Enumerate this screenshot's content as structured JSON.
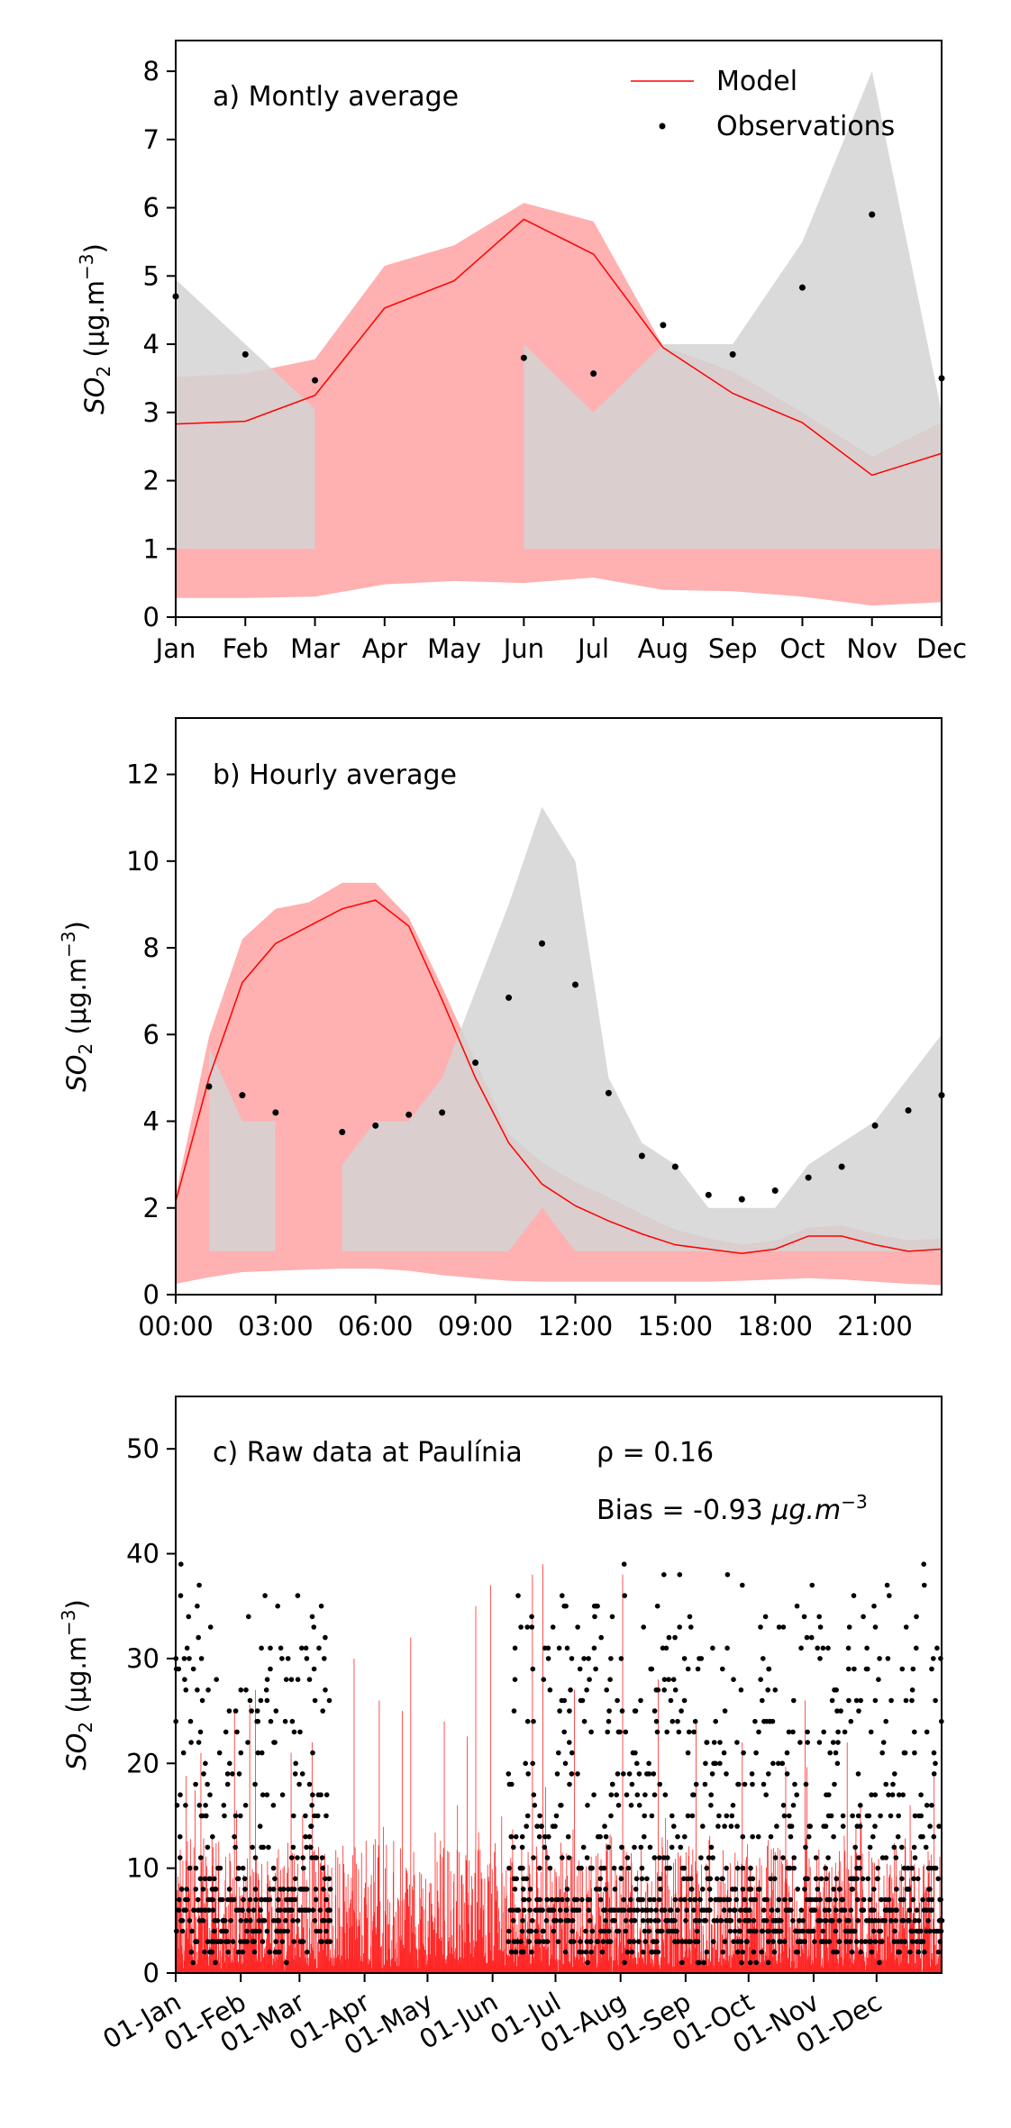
{
  "colors": {
    "model": "#ff0000",
    "model_band": "#ffb0b0",
    "obs": "#000000",
    "obs_band": "#d3d3d3"
  },
  "legend": {
    "model": "Model",
    "observations": "Observations",
    "placement": "top-right"
  },
  "chart_data": [
    {
      "type": "line",
      "annotation": "a) Montly average",
      "ylabel_base": "SO",
      "ylabel_sub": "2",
      "ylabel_unit": " (μg.m",
      "ylabel_exp": "−3",
      "ylabel_close": ")",
      "categories": [
        "Jan",
        "Feb",
        "Mar",
        "Apr",
        "May",
        "Jun",
        "Jul",
        "Aug",
        "Sep",
        "Oct",
        "Nov",
        "Dec"
      ],
      "ylim": [
        0,
        8.45
      ],
      "yticks": [
        0,
        1,
        2,
        3,
        4,
        5,
        6,
        7,
        8
      ],
      "grid": false,
      "series": [
        {
          "name": "Model",
          "values": [
            2.83,
            2.87,
            3.25,
            4.53,
            4.93,
            5.83,
            5.32,
            3.95,
            3.28,
            2.85,
            2.08,
            2.4
          ]
        },
        {
          "name": "Observations",
          "values": [
            4.7,
            3.85,
            3.47,
            null,
            null,
            3.8,
            3.57,
            4.28,
            3.85,
            4.83,
            5.9,
            3.5
          ]
        }
      ],
      "model_band": {
        "lower": [
          0.28,
          0.28,
          0.3,
          0.48,
          0.53,
          0.5,
          0.58,
          0.4,
          0.38,
          0.3,
          0.17,
          0.22
        ],
        "upper": [
          3.52,
          3.57,
          3.78,
          5.15,
          5.45,
          6.07,
          5.8,
          3.97,
          3.6,
          3.0,
          2.35,
          2.85
        ]
      },
      "obs_band": [
        {
          "x": [
            0,
            1,
            2
          ],
          "lower": [
            1,
            1,
            1
          ],
          "upper": [
            4.95,
            4.0,
            3.05
          ]
        },
        {
          "x": [
            5,
            6,
            7,
            8,
            9,
            10,
            11
          ],
          "lower": [
            1,
            1,
            1,
            1,
            1,
            1,
            1
          ],
          "upper": [
            4.0,
            3.0,
            4.0,
            4.0,
            5.5,
            8.0,
            3.0
          ]
        }
      ]
    },
    {
      "type": "line",
      "annotation": "b) Hourly average",
      "ylabel_base": "SO",
      "ylabel_sub": "2",
      "ylabel_unit": " (μg.m",
      "ylabel_exp": "−3",
      "ylabel_close": ")",
      "xticks": [
        "00:00",
        "03:00",
        "06:00",
        "09:00",
        "12:00",
        "15:00",
        "18:00",
        "21:00"
      ],
      "xtick_hours": [
        0,
        3,
        6,
        9,
        12,
        15,
        18,
        21
      ],
      "xlim": [
        0,
        23
      ],
      "ylim": [
        0,
        13.3
      ],
      "yticks": [
        0,
        2,
        4,
        6,
        8,
        10,
        12
      ],
      "grid": false,
      "series": [
        {
          "name": "Model",
          "hours": [
            0,
            1,
            2,
            3,
            4,
            5,
            6,
            7,
            8,
            9,
            10,
            11,
            12,
            13,
            14,
            15,
            16,
            17,
            18,
            19,
            20,
            21,
            22,
            23
          ],
          "values": [
            2.15,
            5.0,
            7.2,
            8.1,
            8.5,
            8.9,
            9.1,
            8.5,
            6.8,
            5.0,
            3.5,
            2.55,
            2.05,
            1.7,
            1.4,
            1.15,
            1.05,
            0.95,
            1.05,
            1.35,
            1.35,
            1.15,
            1.0,
            1.05
          ]
        },
        {
          "name": "Observations",
          "hours": [
            1,
            2,
            3,
            5,
            6,
            7,
            8,
            9,
            10,
            11,
            12,
            13,
            14,
            15,
            16,
            17,
            18,
            19,
            20,
            21,
            22,
            23
          ],
          "values": [
            4.8,
            4.6,
            4.2,
            3.75,
            3.9,
            4.15,
            4.2,
            5.35,
            6.85,
            8.1,
            7.15,
            4.65,
            3.2,
            2.95,
            2.3,
            2.2,
            2.4,
            2.7,
            2.95,
            3.9,
            4.25,
            4.6
          ]
        }
      ],
      "model_band": {
        "hours": [
          0,
          1,
          2,
          3,
          4,
          5,
          6,
          7,
          8,
          9,
          10,
          11,
          12,
          13,
          14,
          15,
          16,
          17,
          18,
          19,
          20,
          21,
          22,
          23
        ],
        "lower": [
          0.25,
          0.4,
          0.52,
          0.55,
          0.58,
          0.6,
          0.6,
          0.55,
          0.45,
          0.38,
          0.32,
          0.3,
          0.3,
          0.3,
          0.3,
          0.3,
          0.3,
          0.32,
          0.35,
          0.38,
          0.35,
          0.3,
          0.25,
          0.22
        ],
        "upper": [
          2.3,
          5.95,
          8.2,
          8.9,
          9.05,
          9.5,
          9.5,
          8.7,
          7.1,
          5.4,
          3.7,
          3.05,
          2.6,
          2.25,
          1.85,
          1.5,
          1.3,
          1.15,
          1.25,
          1.55,
          1.6,
          1.4,
          1.25,
          1.3
        ]
      },
      "obs_band": [
        {
          "hours": [
            1,
            2,
            3
          ],
          "lower": [
            1,
            1,
            1
          ],
          "upper": [
            5.7,
            4.0,
            4.0
          ]
        },
        {
          "hours": [
            5,
            6,
            7,
            8,
            9,
            10,
            11,
            12,
            13,
            14,
            15,
            16,
            17,
            18,
            19,
            20,
            21,
            22,
            23
          ],
          "lower": [
            1,
            1,
            1,
            1,
            1,
            1,
            2,
            1,
            1,
            1,
            1,
            1,
            1,
            1,
            1,
            1,
            1,
            1,
            1
          ],
          "upper": [
            3.0,
            4.0,
            4.0,
            5.0,
            7.0,
            9.0,
            11.25,
            10.0,
            5.0,
            3.5,
            3.0,
            2.0,
            2.0,
            2.0,
            3.0,
            3.5,
            4.0,
            5.0,
            6.0
          ]
        }
      ]
    },
    {
      "type": "scatter",
      "annotation": "c) Raw data at Paulínia",
      "rho": "ρ = 0.16",
      "bias_text": "Bias = -0.93 ",
      "bias_unit": "μg.m",
      "bias_exp": "−3",
      "ylabel_base": "SO",
      "ylabel_sub": "2",
      "ylabel_unit": " (μg.m",
      "ylabel_exp": "−3",
      "ylabel_close": ")",
      "xticks": [
        "01-Jan",
        "01-Feb",
        "01-Mar",
        "01-Apr",
        "01-May",
        "01-Jun",
        "01-Jul",
        "01-Aug",
        "01-Sep",
        "01-Oct",
        "01-Nov",
        "01-Dec"
      ],
      "xtick_days": [
        0,
        31,
        59,
        90,
        120,
        151,
        181,
        212,
        243,
        273,
        304,
        334
      ],
      "xlim": [
        0,
        365
      ],
      "ylim": [
        0,
        55
      ],
      "yticks": [
        0,
        10,
        20,
        30,
        40,
        50
      ],
      "obs_gap_days": [
        73,
        158
      ],
      "obs_max": 39,
      "model_spikes": [
        {
          "day": 12,
          "value": 21
        },
        {
          "day": 28,
          "value": 25
        },
        {
          "day": 38,
          "value": 27
        },
        {
          "day": 55,
          "value": 21
        },
        {
          "day": 65,
          "value": 22
        },
        {
          "day": 85,
          "value": 30
        },
        {
          "day": 97,
          "value": 26
        },
        {
          "day": 108,
          "value": 25
        },
        {
          "day": 112,
          "value": 32
        },
        {
          "day": 128,
          "value": 24
        },
        {
          "day": 143,
          "value": 35
        },
        {
          "day": 150,
          "value": 37
        },
        {
          "day": 170,
          "value": 38
        },
        {
          "day": 175,
          "value": 39
        },
        {
          "day": 190,
          "value": 27
        },
        {
          "day": 213,
          "value": 38
        },
        {
          "day": 230,
          "value": 28
        },
        {
          "day": 248,
          "value": 24
        },
        {
          "day": 270,
          "value": 22
        },
        {
          "day": 300,
          "value": 26
        },
        {
          "day": 320,
          "value": 22
        },
        {
          "day": 350,
          "value": 16
        }
      ]
    }
  ]
}
